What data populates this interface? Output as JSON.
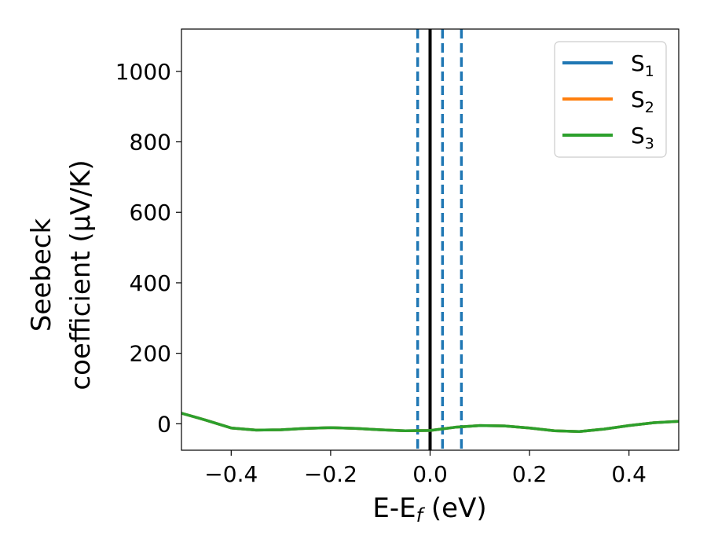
{
  "chart_data": {
    "type": "line",
    "xlabel": {
      "main": "E-E",
      "sub": "f",
      "suffix": " (eV)"
    },
    "ylabel": {
      "line1": "Seebeck",
      "line2": "coefficient  (μV/K)"
    },
    "xlim": [
      -0.5,
      0.5
    ],
    "ylim": [
      -75,
      1120
    ],
    "xticks": [
      -0.4,
      -0.2,
      0.0,
      0.2,
      0.4
    ],
    "xtick_labels": [
      "−0.4",
      "−0.2",
      "0.0",
      "0.2",
      "0.4"
    ],
    "yticks": [
      0,
      200,
      400,
      600,
      800,
      1000
    ],
    "ytick_labels": [
      "0",
      "200",
      "400",
      "600",
      "800",
      "1000"
    ],
    "grid": false,
    "legend_position": "top-right",
    "series": [
      {
        "name": "S",
        "sub": "1",
        "color": "#1f77b4",
        "x": [
          -0.5,
          -0.45,
          -0.4,
          -0.35,
          -0.3,
          -0.25,
          -0.2,
          -0.15,
          -0.1,
          -0.05,
          0.0,
          0.05,
          0.1,
          0.15,
          0.2,
          0.25,
          0.3,
          0.35,
          0.4,
          0.45,
          0.5
        ],
        "y": [
          30,
          10,
          -12,
          -18,
          -17,
          -13,
          -11,
          -13,
          -17,
          -20,
          -19,
          -10,
          -5,
          -6,
          -12,
          -20,
          -22,
          -15,
          -5,
          3,
          7
        ]
      },
      {
        "name": "S",
        "sub": "2",
        "color": "#ff7f0e",
        "x": [
          -0.5,
          -0.45,
          -0.4,
          -0.35,
          -0.3,
          -0.25,
          -0.2,
          -0.15,
          -0.1,
          -0.05,
          0.0,
          0.05,
          0.1,
          0.15,
          0.2,
          0.25,
          0.3,
          0.35,
          0.4,
          0.45,
          0.5
        ],
        "y": [
          30,
          10,
          -12,
          -18,
          -17,
          -13,
          -11,
          -13,
          -17,
          -20,
          -19,
          -10,
          -5,
          -6,
          -12,
          -20,
          -22,
          -15,
          -5,
          3,
          7
        ]
      },
      {
        "name": "S",
        "sub": "3",
        "color": "#2ca02c",
        "x": [
          -0.5,
          -0.45,
          -0.4,
          -0.35,
          -0.3,
          -0.25,
          -0.2,
          -0.15,
          -0.1,
          -0.05,
          0.0,
          0.05,
          0.1,
          0.15,
          0.2,
          0.25,
          0.3,
          0.35,
          0.4,
          0.45,
          0.5
        ],
        "y": [
          30,
          10,
          -12,
          -18,
          -17,
          -13,
          -11,
          -13,
          -17,
          -20,
          -19,
          -10,
          -5,
          -6,
          -12,
          -20,
          -22,
          -15,
          -5,
          3,
          7
        ]
      }
    ],
    "vertical_lines": [
      {
        "x": -0.025,
        "style": "dashed",
        "color": "#1f77b4"
      },
      {
        "x": 0.0,
        "style": "solid",
        "color": "#000000"
      },
      {
        "x": 0.025,
        "style": "dashed",
        "color": "#1f77b4"
      },
      {
        "x": 0.063,
        "style": "dashed",
        "color": "#1f77b4"
      }
    ]
  }
}
